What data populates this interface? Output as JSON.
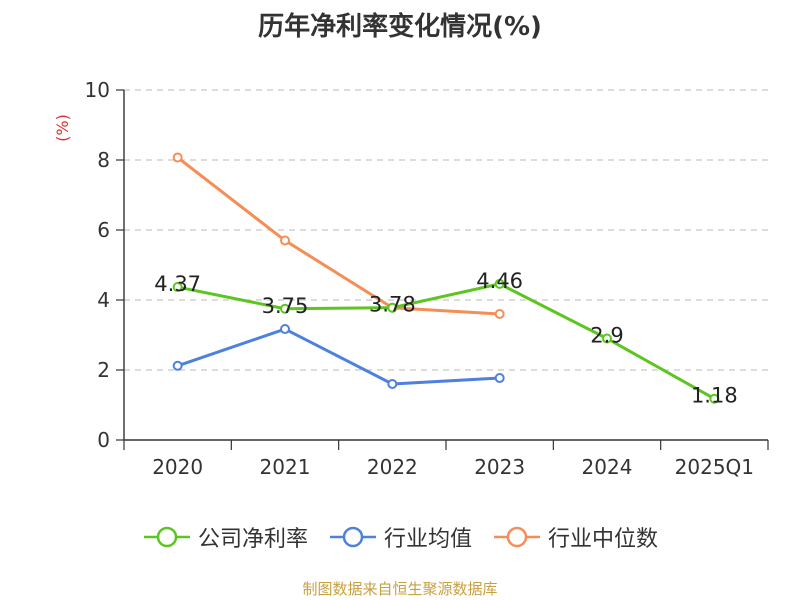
{
  "chart_data": {
    "type": "line",
    "title": "历年净利率变化情况(%)",
    "ylabel": "(%)",
    "xlabel": "",
    "categories": [
      "2020",
      "2021",
      "2022",
      "2023",
      "2024",
      "2025Q1"
    ],
    "ylim": [
      0,
      10
    ],
    "yticks": [
      0,
      2,
      4,
      6,
      8,
      10
    ],
    "grid": true,
    "legend_position": "bottom",
    "series": [
      {
        "name": "公司净利率",
        "color": "#5cc520",
        "values": [
          4.37,
          3.75,
          3.78,
          4.46,
          2.9,
          1.18
        ],
        "labels": [
          "4.37",
          "3.75",
          "3.78",
          "4.46",
          "2.9",
          "1.18"
        ]
      },
      {
        "name": "行业均值",
        "color": "#4e80dd",
        "values": [
          2.12,
          3.17,
          1.6,
          1.77,
          null,
          null
        ]
      },
      {
        "name": "行业中位数",
        "color": "#f58e56",
        "values": [
          8.07,
          5.7,
          3.78,
          3.6,
          null,
          null
        ]
      }
    ]
  },
  "source": "制图数据来自恒生聚源数据库"
}
